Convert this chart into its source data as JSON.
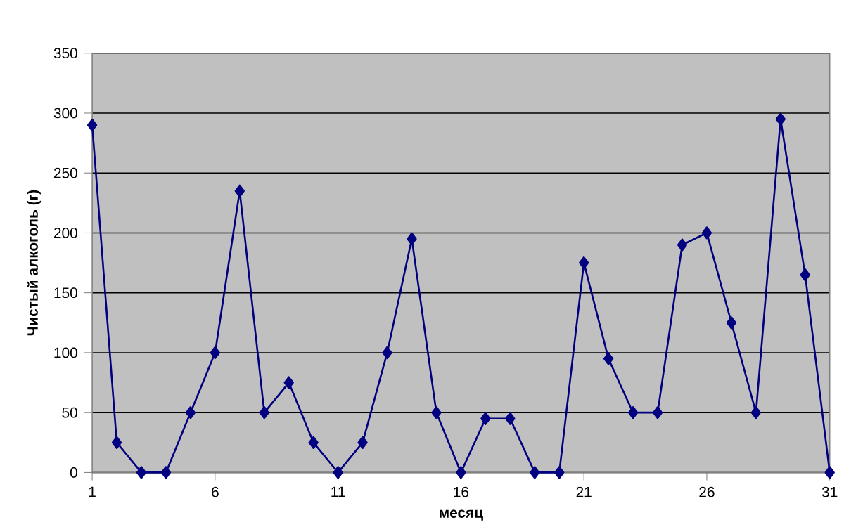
{
  "chart_data": {
    "type": "line",
    "xlabel": "месяц",
    "ylabel": "Чистый алкоголь (г)",
    "x": [
      1,
      2,
      3,
      4,
      5,
      6,
      7,
      8,
      9,
      10,
      11,
      12,
      13,
      14,
      15,
      16,
      17,
      18,
      19,
      20,
      21,
      22,
      23,
      24,
      25,
      26,
      27,
      28,
      29,
      30,
      31
    ],
    "values": [
      290,
      25,
      0,
      0,
      50,
      100,
      235,
      50,
      75,
      25,
      0,
      25,
      100,
      195,
      50,
      0,
      45,
      45,
      0,
      0,
      175,
      95,
      50,
      50,
      190,
      200,
      125,
      50,
      295,
      165,
      0
    ],
    "color": "#000080",
    "xlim": [
      1,
      31
    ],
    "xticks": [
      1,
      6,
      11,
      16,
      21,
      26,
      31
    ],
    "ylim": [
      0,
      350
    ],
    "yticks": [
      0,
      50,
      100,
      150,
      200,
      250,
      300,
      350
    ],
    "grid": "y",
    "marker": "diamond",
    "line_style": "solid"
  }
}
